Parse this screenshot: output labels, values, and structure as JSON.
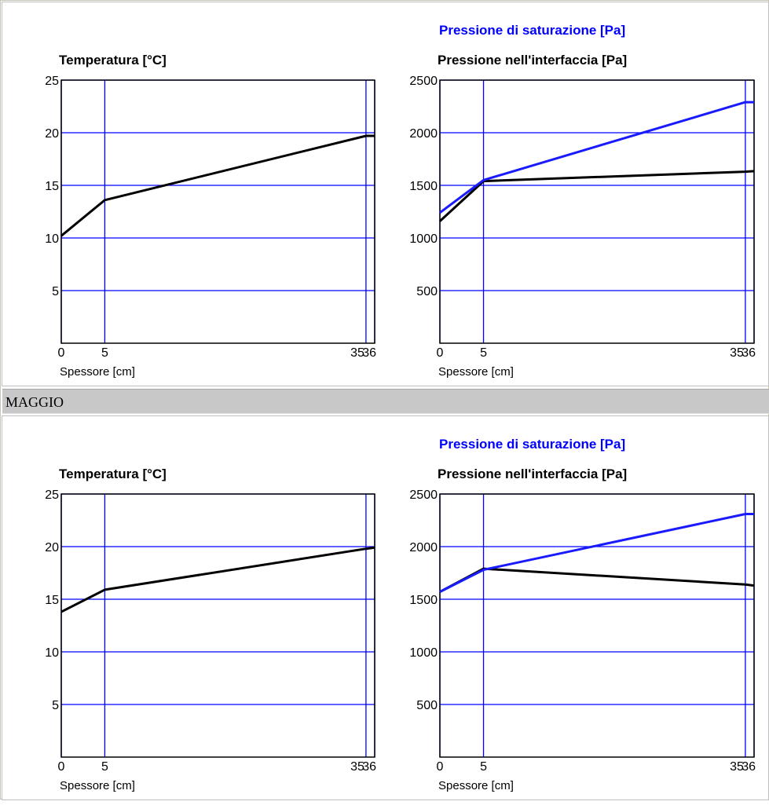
{
  "sections": [
    {
      "label": ""
    },
    {
      "label": "MAGGIO"
    }
  ],
  "colors": {
    "grid": "#0000ff",
    "series_black": "#000000",
    "series_blue": "#1a1aff",
    "title_blue": "#0000ff",
    "section_bar": "#c8c8c8"
  },
  "chart_data": [
    {
      "type": "line",
      "panel": "upper-left",
      "title": "Temperatura [°C]",
      "title_colored": "",
      "xlabel": "Spessore [cm]",
      "x_ticks": [
        "0",
        "5",
        "35",
        "36"
      ],
      "y_ticks": [
        "5",
        "10",
        "15",
        "20",
        "25"
      ],
      "xlim": [
        0,
        36
      ],
      "ylim": [
        0,
        25
      ],
      "series": [
        {
          "color": "black",
          "x": [
            0,
            5,
            35,
            36
          ],
          "y": [
            10.2,
            13.6,
            19.7,
            19.7
          ]
        }
      ]
    },
    {
      "type": "line",
      "panel": "upper-right",
      "title": "Pressione nell'interfaccia [Pa]",
      "title_colored": "Pressione di saturazione [Pa]",
      "xlabel": "Spessore [cm]",
      "x_ticks": [
        "0",
        "5",
        "35",
        "36"
      ],
      "y_ticks": [
        "500",
        "1000",
        "1500",
        "2000",
        "2500"
      ],
      "xlim": [
        0,
        36
      ],
      "ylim": [
        0,
        2500
      ],
      "series": [
        {
          "color": "black",
          "x": [
            0,
            5,
            35,
            36
          ],
          "y": [
            1160,
            1540,
            1630,
            1635
          ]
        },
        {
          "color": "blue",
          "x": [
            0,
            5,
            35,
            36
          ],
          "y": [
            1240,
            1550,
            2290,
            2290
          ]
        }
      ]
    },
    {
      "type": "line",
      "panel": "lower-left",
      "title": "Temperatura [°C]",
      "title_colored": "",
      "xlabel": "Spessore [cm]",
      "x_ticks": [
        "0",
        "5",
        "35",
        "36"
      ],
      "y_ticks": [
        "5",
        "10",
        "15",
        "20",
        "25"
      ],
      "xlim": [
        0,
        36
      ],
      "ylim": [
        0,
        25
      ],
      "series": [
        {
          "color": "black",
          "x": [
            0,
            5,
            35,
            36
          ],
          "y": [
            13.8,
            15.9,
            19.8,
            19.9
          ]
        }
      ]
    },
    {
      "type": "line",
      "panel": "lower-right",
      "title": "Pressione nell'interfaccia [Pa]",
      "title_colored": "Pressione di saturazione [Pa]",
      "xlabel": "Spessore [cm]",
      "x_ticks": [
        "0",
        "5",
        "35",
        "36"
      ],
      "y_ticks": [
        "500",
        "1000",
        "1500",
        "2000",
        "2500"
      ],
      "xlim": [
        0,
        36
      ],
      "ylim": [
        0,
        2500
      ],
      "series": [
        {
          "color": "black",
          "x": [
            0,
            5,
            35,
            36
          ],
          "y": [
            1570,
            1790,
            1640,
            1630
          ]
        },
        {
          "color": "blue",
          "x": [
            0,
            5,
            35,
            36
          ],
          "y": [
            1570,
            1780,
            2310,
            2310
          ]
        }
      ]
    }
  ]
}
